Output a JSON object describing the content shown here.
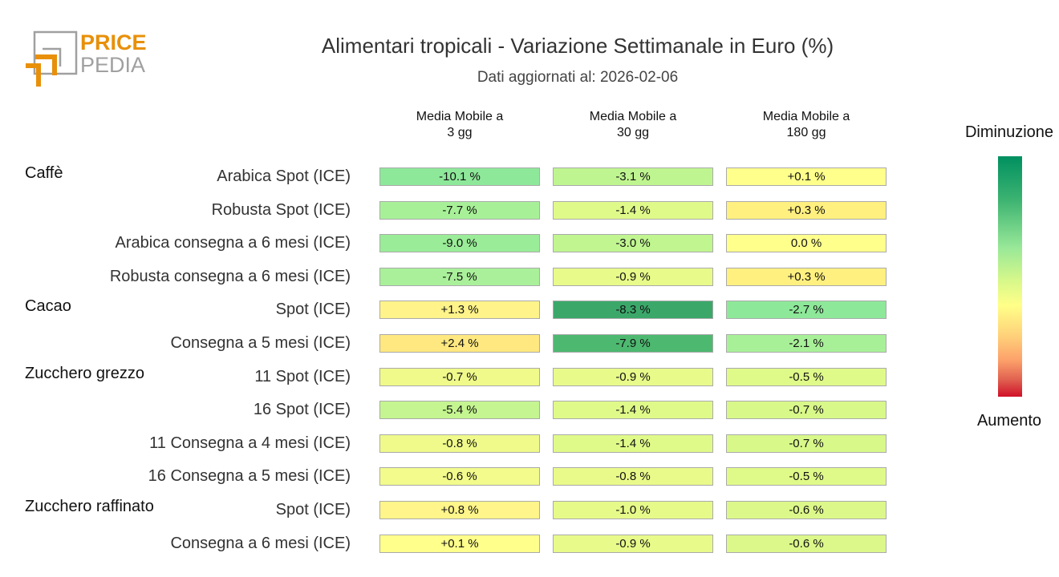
{
  "logo": {
    "line1": "PRICE",
    "line2": "PEDIA",
    "colors": {
      "orange": "#e8900a",
      "gray": "#a0a0a0"
    }
  },
  "chart_data": {
    "type": "heatmap",
    "title": "Alimentari tropicali - Variazione Settimanale in Euro (%)",
    "subtitle": "Dati aggiornati al: 2026-02-06",
    "columns": [
      "Media Mobile a\n3 gg",
      "Media Mobile a\n30 gg",
      "Media Mobile a\n180 gg"
    ],
    "legend": {
      "top": "Diminuzione",
      "bottom": "Aumento",
      "colors": [
        "#009060",
        "#98e898",
        "#ffff88",
        "#fca06a",
        "#d01028"
      ]
    },
    "rows": [
      {
        "group": "Caffè",
        "label": "Arabica Spot (ICE)",
        "values": [
          "-10.1 %",
          "-3.1 %",
          "+0.1 %"
        ],
        "colors": [
          "#8ee89a",
          "#bff590",
          "#ffff8c"
        ]
      },
      {
        "group": "",
        "label": "Robusta Spot (ICE)",
        "values": [
          "-7.7 %",
          "-1.4 %",
          "+0.3 %"
        ],
        "colors": [
          "#a8f098",
          "#e0fa8a",
          "#fff080"
        ]
      },
      {
        "group": "",
        "label": "Arabica consegna a 6 mesi (ICE)",
        "values": [
          "-9.0 %",
          "-3.0 %",
          "0.0 %"
        ],
        "colors": [
          "#9aec98",
          "#c0f590",
          "#ffff8c"
        ]
      },
      {
        "group": "",
        "label": "Robusta consegna a 6 mesi (ICE)",
        "values": [
          "-7.5 %",
          "-0.9 %",
          "+0.3 %"
        ],
        "colors": [
          "#aaf09a",
          "#e8fa8a",
          "#fff080"
        ]
      },
      {
        "group": "Cacao",
        "label": "Spot (ICE)",
        "values": [
          "+1.3 %",
          "-8.3 %",
          "-2.7 %"
        ],
        "colors": [
          "#fff38a",
          "#3ba86a",
          "#8ee89a"
        ]
      },
      {
        "group": "",
        "label": "Consegna a 5 mesi (ICE)",
        "values": [
          "+2.4 %",
          "-7.9 %",
          "-2.1 %"
        ],
        "colors": [
          "#ffe880",
          "#4db870",
          "#a8f098"
        ]
      },
      {
        "group": "Zucchero grezzo",
        "label": "11 Spot (ICE)",
        "values": [
          "-0.7 %",
          "-0.9 %",
          "-0.5 %"
        ],
        "colors": [
          "#f0fa8a",
          "#e8fa8a",
          "#e0fa8a"
        ]
      },
      {
        "group": "",
        "label": "16 Spot (ICE)",
        "values": [
          "-5.4 %",
          "-1.4 %",
          "-0.7 %"
        ],
        "colors": [
          "#c4f590",
          "#e0fa8a",
          "#d8f88a"
        ]
      },
      {
        "group": "",
        "label": "11 Consegna a 4 mesi (ICE)",
        "values": [
          "-0.8 %",
          "-1.4 %",
          "-0.7 %"
        ],
        "colors": [
          "#effa8a",
          "#e0fa8a",
          "#d8f88a"
        ]
      },
      {
        "group": "",
        "label": "16 Consegna a 5 mesi (ICE)",
        "values": [
          "-0.6 %",
          "-0.8 %",
          "-0.5 %"
        ],
        "colors": [
          "#f2fb8c",
          "#eafa8a",
          "#e0fa8a"
        ]
      },
      {
        "group": "Zucchero raffinato",
        "label": "Spot (ICE)",
        "values": [
          "+0.8 %",
          "-1.0 %",
          "-0.6 %"
        ],
        "colors": [
          "#fff58a",
          "#e6fa8a",
          "#dcf88a"
        ]
      },
      {
        "group": "",
        "label": "Consegna a 6 mesi (ICE)",
        "values": [
          "+0.1 %",
          "-0.9 %",
          "-0.6 %"
        ],
        "colors": [
          "#ffff8c",
          "#e8fa8a",
          "#dcf88a"
        ]
      }
    ]
  }
}
